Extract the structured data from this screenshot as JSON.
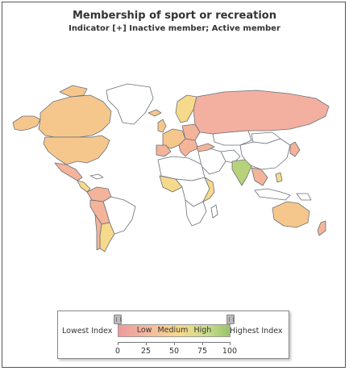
{
  "title": "Membership of sport or recreation",
  "subtitle": "Indicator [+] Inactive member; Active member",
  "legend": {
    "lowest_label": "Lowest Index",
    "highest_label": "Highest Index",
    "bar_words": [
      "Low",
      "Medium",
      "High"
    ],
    "ticks": [
      "0",
      "25",
      "50",
      "75",
      "100"
    ],
    "colors": {
      "low": "#ee9a9a",
      "medium": "#f6d98a",
      "high": "#98c46a",
      "no_data": "#ffffff"
    }
  }
}
